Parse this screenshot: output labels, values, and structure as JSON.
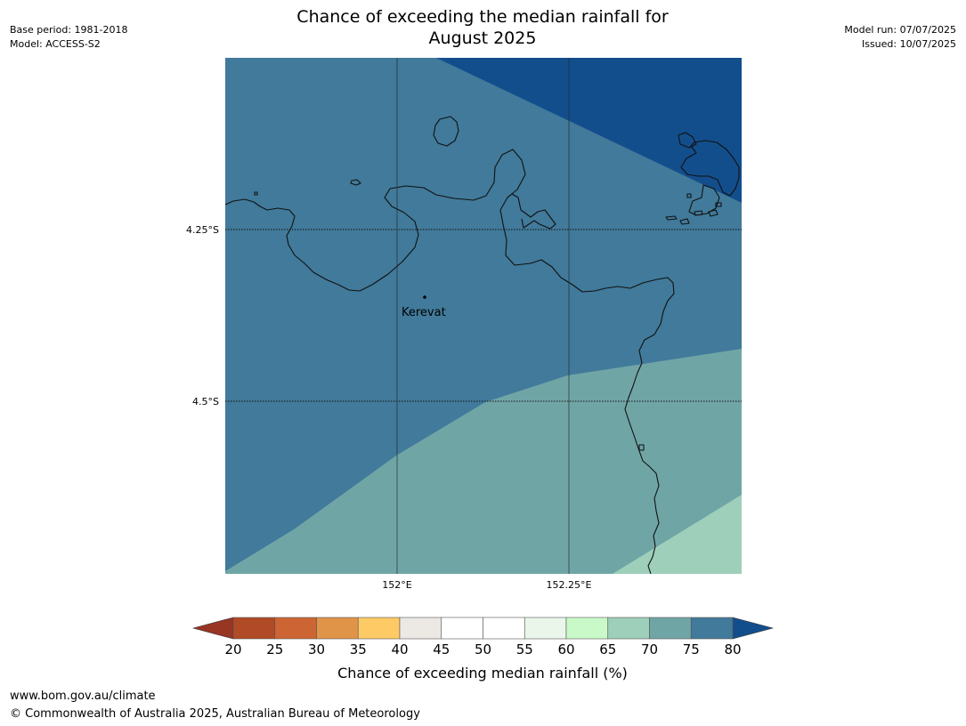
{
  "header": {
    "base_period": "Base period: 1981-2018",
    "model": "Model: ACCESS-S2",
    "model_run": "Model run: 07/07/2025",
    "issued": "Issued: 10/07/2025",
    "title_line1": "Chance of exceeding the median rainfall for",
    "title_line2": "August 2025"
  },
  "map": {
    "place": {
      "name": "Kerevat"
    },
    "lat_labels": [
      "4.25°S",
      "4.5°S"
    ],
    "lon_labels": [
      "152°E",
      "152.25°E"
    ],
    "zone_colors": {
      "band_75_80": "#417a9a",
      "band_70_75": "#70a5a6",
      "band_65_70": "#9dcfba",
      "band_above_80": "#134e8c"
    }
  },
  "colorbar": {
    "label": "Chance of exceeding median rainfall (%)",
    "ticks": [
      "20",
      "25",
      "30",
      "35",
      "40",
      "45",
      "50",
      "55",
      "60",
      "65",
      "70",
      "75",
      "80"
    ],
    "low_extension_color": "#983523",
    "high_extension_color": "#134e8c",
    "colors": [
      "#b14a26",
      "#cc6533",
      "#e09448",
      "#fdca65",
      "#ece8e3",
      "#ffffff",
      "#ffffff",
      "#e9f6e9",
      "#caf9c9",
      "#9dcfba",
      "#70a5a6",
      "#417a9a"
    ]
  },
  "footer": {
    "url": "www.bom.gov.au/climate",
    "copyright": "© Commonwealth of Australia 2025, Australian Bureau of Meteorology"
  }
}
